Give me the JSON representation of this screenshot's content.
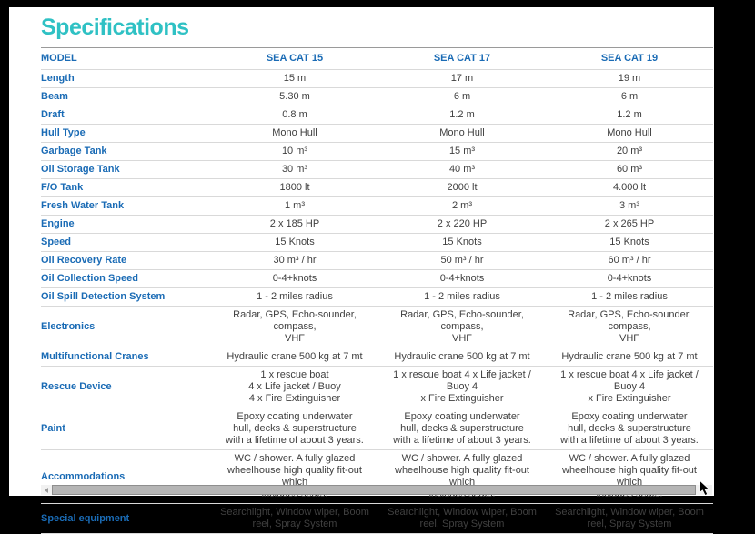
{
  "title": {
    "text": "Specifications"
  },
  "colors": {
    "accent_teal": "#2fc1c4",
    "label_blue": "#1a6bb5",
    "value_text": "#404040",
    "row_divider": "#d9d9d9",
    "frame_black": "#000000"
  },
  "table": {
    "header_label": "MODEL",
    "columns": [
      "SEA CAT 15",
      "SEA CAT 17",
      "SEA CAT 19"
    ],
    "rows": [
      {
        "label": "Length",
        "values": [
          "15 m",
          "17 m",
          "19 m"
        ]
      },
      {
        "label": "Beam",
        "values": [
          "5.30 m",
          "6 m",
          "6 m"
        ]
      },
      {
        "label": "Draft",
        "values": [
          "0.8 m",
          "1.2 m",
          "1.2 m"
        ]
      },
      {
        "label": "Hull Type",
        "values": [
          "Mono Hull",
          "Mono Hull",
          "Mono Hull"
        ]
      },
      {
        "label": "Garbage Tank",
        "values": [
          "10 m³",
          "15 m³",
          "20 m³"
        ]
      },
      {
        "label": "Oil Storage Tank",
        "values": [
          "30 m³",
          "40 m³",
          "60 m³"
        ]
      },
      {
        "label": "F/O Tank",
        "values": [
          "1800 lt",
          "2000 lt",
          "4.000 lt"
        ]
      },
      {
        "label": "Fresh Water Tank",
        "values": [
          "1 m³",
          "2 m³",
          "3 m³"
        ]
      },
      {
        "label": "Engine",
        "values": [
          "2 x 185 HP",
          "2 x 220 HP",
          "2 x 265 HP"
        ]
      },
      {
        "label": "Speed",
        "values": [
          "15 Knots",
          "15 Knots",
          "15 Knots"
        ]
      },
      {
        "label": "Oil Recovery Rate",
        "values": [
          "30 m³ / hr",
          "50 m³ / hr",
          "60 m³ / hr"
        ]
      },
      {
        "label": "Oil Collection Speed",
        "values": [
          "0-4+knots",
          "0-4+knots",
          "0-4+knots"
        ]
      },
      {
        "label": "Oil Spill Detection System",
        "values": [
          "1 - 2 miles radius",
          "1 - 2 miles radius",
          "1 - 2 miles radius"
        ]
      },
      {
        "label": "Electronics",
        "values": [
          "Radar, GPS, Echo-sounder, compass,\nVHF",
          "Radar, GPS, Echo-sounder, compass,\nVHF",
          "Radar, GPS, Echo-sounder, compass,\nVHF"
        ]
      },
      {
        "label": "Multifunctional Cranes",
        "values": [
          "Hydraulic crane 500 kg at 7 mt",
          "Hydraulic crane 500 kg at 7 mt",
          "Hydraulic crane 500 kg at 7 mt"
        ]
      },
      {
        "label": "Rescue Device",
        "values": [
          "1 x rescue boat\n4 x Life jacket / Buoy\n4 x Fire Extinguisher",
          "1 x rescue boat 4 x Life jacket / Buoy 4\nx Fire Extinguisher",
          "1 x rescue boat 4 x Life jacket / Buoy 4\nx Fire Extinguisher"
        ]
      },
      {
        "label": "Paint",
        "values": [
          "Epoxy coating underwater\nhull, decks & superstructure\nwith a lifetime of about 3 years.",
          "Epoxy coating underwater\nhull, decks & superstructure\nwith a lifetime of about 3 years.",
          "Epoxy coating underwater\nhull, decks & superstructure\nwith a lifetime of about 3 years."
        ]
      },
      {
        "label": "Accommodations",
        "values": [
          "WC / shower. A fully glazed\nwheelhouse high quality fit-out which\nincludes seats.",
          "WC / shower. A fully glazed\nwheelhouse high quality fit-out which\nincludes seats.",
          "WC / shower. A fully glazed\nwheelhouse high quality fit-out which\nincludes seats."
        ]
      },
      {
        "label": "Special equipment",
        "values": [
          "Searchlight, Window wiper, Boom\nreel, Spray System",
          "Searchlight, Window wiper, Boom\nreel, Spray System",
          "Searchlight, Window wiper, Boom\nreel, Spray System"
        ]
      }
    ]
  }
}
